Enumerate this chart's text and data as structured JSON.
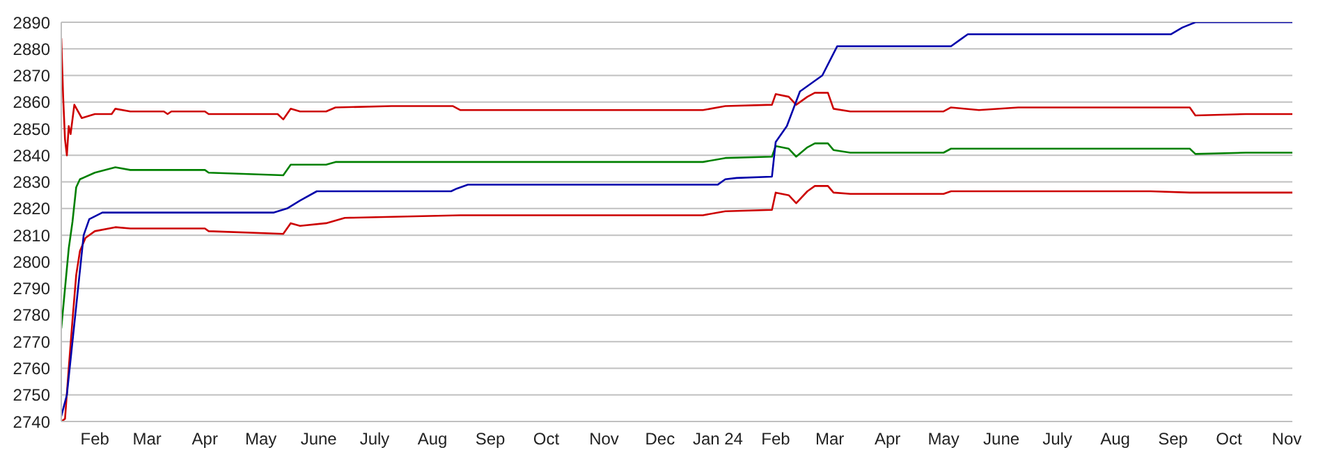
{
  "chart_data": {
    "type": "line",
    "xlim": [
      "2023-01-14",
      "2024-11-04"
    ],
    "ylim": [
      2740,
      2890
    ],
    "yticks": [
      2740,
      2750,
      2760,
      2770,
      2780,
      2790,
      2800,
      2810,
      2820,
      2830,
      2840,
      2850,
      2860,
      2870,
      2880,
      2890
    ],
    "xticks": [
      {
        "value": "2023-02-01",
        "label": "Feb"
      },
      {
        "value": "2023-03-01",
        "label": "Mar"
      },
      {
        "value": "2023-04-01",
        "label": "Apr"
      },
      {
        "value": "2023-05-01",
        "label": "May"
      },
      {
        "value": "2023-06-01",
        "label": "June"
      },
      {
        "value": "2023-07-01",
        "label": "July"
      },
      {
        "value": "2023-08-01",
        "label": "Aug"
      },
      {
        "value": "2023-09-01",
        "label": "Sep"
      },
      {
        "value": "2023-10-01",
        "label": "Oct"
      },
      {
        "value": "2023-11-01",
        "label": "Nov"
      },
      {
        "value": "2023-12-01",
        "label": "Dec"
      },
      {
        "value": "2024-01-01",
        "label": "Jan 24"
      },
      {
        "value": "2024-02-01",
        "label": "Feb"
      },
      {
        "value": "2024-03-01",
        "label": "Mar"
      },
      {
        "value": "2024-04-01",
        "label": "Apr"
      },
      {
        "value": "2024-05-01",
        "label": "May"
      },
      {
        "value": "2024-06-01",
        "label": "June"
      },
      {
        "value": "2024-07-01",
        "label": "July"
      },
      {
        "value": "2024-08-01",
        "label": "Aug"
      },
      {
        "value": "2024-09-01",
        "label": "Sep"
      },
      {
        "value": "2024-10-01",
        "label": "Oct"
      },
      {
        "value": "2024-11-01",
        "label": "Nov"
      }
    ],
    "grid": "y",
    "legend": false,
    "series": [
      {
        "color": "#cc0000",
        "x": [
          "2023-01-14",
          "2023-01-15",
          "2023-01-16",
          "2023-01-17",
          "2023-01-18",
          "2023-01-19",
          "2023-01-21",
          "2023-01-25",
          "2023-02-01",
          "2023-02-10",
          "2023-02-12",
          "2023-02-20",
          "2023-03-10",
          "2023-03-12",
          "2023-03-14",
          "2023-04-01",
          "2023-04-03",
          "2023-05-10",
          "2023-05-13",
          "2023-05-17",
          "2023-05-22",
          "2023-06-05",
          "2023-06-10",
          "2023-07-10",
          "2023-08-12",
          "2023-08-16",
          "2023-12-24",
          "2024-01-05",
          "2024-01-30",
          "2024-02-01",
          "2024-02-08",
          "2024-02-12",
          "2024-02-18",
          "2024-02-22",
          "2024-02-29",
          "2024-03-03",
          "2024-03-12",
          "2024-05-01",
          "2024-05-05",
          "2024-05-20",
          "2024-06-10",
          "2024-07-15",
          "2024-08-20",
          "2024-09-10",
          "2024-09-13",
          "2024-10-10",
          "2024-11-04"
        ],
        "values": [
          2884,
          2862,
          2846,
          2840,
          2851,
          2848,
          2859,
          2854,
          2855.5,
          2855.5,
          2857.5,
          2856.5,
          2856.5,
          2855.5,
          2856.5,
          2856.5,
          2855.5,
          2855.5,
          2853.5,
          2857.5,
          2856.5,
          2856.5,
          2858,
          2858.5,
          2858.5,
          2857,
          2857,
          2858.5,
          2859,
          2863,
          2862,
          2859,
          2862,
          2863.5,
          2863.5,
          2857.5,
          2856.5,
          2856.5,
          2858,
          2857,
          2858,
          2858,
          2858,
          2858,
          2855,
          2855.5,
          2855.5
        ]
      },
      {
        "color": "#008000",
        "x": [
          "2023-01-14",
          "2023-01-16",
          "2023-01-18",
          "2023-01-20",
          "2023-01-22",
          "2023-01-24",
          "2023-02-01",
          "2023-02-12",
          "2023-02-20",
          "2023-04-01",
          "2023-04-03",
          "2023-05-13",
          "2023-05-17",
          "2023-06-05",
          "2023-06-10",
          "2023-08-16",
          "2023-12-24",
          "2024-01-05",
          "2024-01-30",
          "2024-02-01",
          "2024-02-08",
          "2024-02-12",
          "2024-02-18",
          "2024-02-22",
          "2024-02-29",
          "2024-03-03",
          "2024-03-12",
          "2024-05-01",
          "2024-05-05",
          "2024-06-10",
          "2024-08-20",
          "2024-09-10",
          "2024-09-13",
          "2024-10-10",
          "2024-11-04"
        ],
        "values": [
          2775,
          2790,
          2805,
          2815,
          2828,
          2831,
          2833.5,
          2835.5,
          2834.5,
          2834.5,
          2833.5,
          2832.5,
          2836.5,
          2836.5,
          2837.5,
          2837.5,
          2837.5,
          2839,
          2839.5,
          2843.5,
          2842.5,
          2839.5,
          2843,
          2844.5,
          2844.5,
          2842,
          2841,
          2841,
          2842.5,
          2842.5,
          2842.5,
          2842.5,
          2840.5,
          2841,
          2841
        ]
      },
      {
        "color": "#cc0000",
        "x": [
          "2023-01-14",
          "2023-01-16",
          "2023-01-18",
          "2023-01-20",
          "2023-01-22",
          "2023-01-24",
          "2023-01-27",
          "2023-02-01",
          "2023-02-12",
          "2023-02-20",
          "2023-04-01",
          "2023-04-03",
          "2023-05-13",
          "2023-05-17",
          "2023-05-22",
          "2023-06-05",
          "2023-06-15",
          "2023-08-16",
          "2023-12-24",
          "2024-01-05",
          "2024-01-30",
          "2024-02-01",
          "2024-02-08",
          "2024-02-12",
          "2024-02-18",
          "2024-02-22",
          "2024-02-29",
          "2024-03-03",
          "2024-03-12",
          "2024-05-01",
          "2024-05-05",
          "2024-08-20",
          "2024-09-10",
          "2024-10-10",
          "2024-11-04"
        ],
        "values": [
          2740,
          2741,
          2760,
          2778,
          2795,
          2804,
          2809,
          2811.5,
          2813,
          2812.5,
          2812.5,
          2811.5,
          2810.5,
          2814.5,
          2813.5,
          2814.5,
          2816.5,
          2817.5,
          2817.5,
          2819,
          2819.5,
          2826,
          2825,
          2822,
          2826.5,
          2828.5,
          2828.5,
          2826,
          2825.5,
          2825.5,
          2826.5,
          2826.5,
          2826,
          2826,
          2826
        ]
      },
      {
        "color": "#0000aa",
        "x": [
          "2023-01-14",
          "2023-01-17",
          "2023-01-20",
          "2023-01-23",
          "2023-01-26",
          "2023-01-29",
          "2023-02-05",
          "2023-05-08",
          "2023-05-15",
          "2023-05-22",
          "2023-05-31",
          "2023-08-11",
          "2023-08-14",
          "2023-08-20",
          "2024-01-01",
          "2024-01-05",
          "2024-01-11",
          "2024-01-30",
          "2024-02-01",
          "2024-02-07",
          "2024-02-14",
          "2024-02-20",
          "2024-02-26",
          "2024-03-05",
          "2024-05-05",
          "2024-05-10",
          "2024-05-14",
          "2024-08-31",
          "2024-09-06",
          "2024-09-13",
          "2024-11-04"
        ],
        "values": [
          2742,
          2750,
          2770,
          2790,
          2810,
          2816,
          2818.5,
          2818.5,
          2820,
          2823,
          2826.5,
          2826.5,
          2827.5,
          2829,
          2829,
          2831,
          2831.5,
          2832,
          2845,
          2851,
          2864,
          2867,
          2870,
          2881,
          2881,
          2883.5,
          2885.5,
          2885.5,
          2888,
          2890,
          2890
        ]
      }
    ]
  }
}
